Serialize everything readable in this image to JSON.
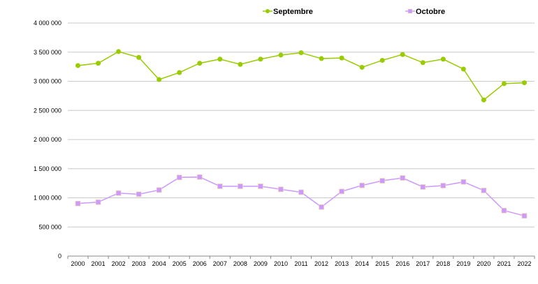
{
  "chart_data": {
    "type": "line",
    "title": "",
    "xlabel": "",
    "ylabel": "",
    "ylim": [
      0,
      4000000
    ],
    "yticks": [
      0,
      500000,
      1000000,
      1500000,
      2000000,
      2500000,
      3000000,
      3500000,
      4000000
    ],
    "ytick_labels": [
      "0",
      "500 000",
      "1 000 000",
      "1 500 000",
      "2 000 000",
      "2 500 000",
      "3 000 000",
      "3 500 000",
      "4 000 000"
    ],
    "grid": true,
    "legend_position": "top",
    "categories": [
      "2000",
      "2001",
      "2002",
      "2003",
      "2004",
      "2005",
      "2006",
      "2007",
      "2008",
      "2009",
      "2010",
      "2011",
      "2012",
      "2013",
      "2014",
      "2015",
      "2016",
      "2017",
      "2018",
      "2019",
      "2020",
      "2021",
      "2022"
    ],
    "series": [
      {
        "name": "Septembre",
        "color": "#99cc00",
        "marker": "circle",
        "values": [
          3270000,
          3310000,
          3510000,
          3410000,
          3030000,
          3150000,
          3310000,
          3380000,
          3290000,
          3380000,
          3450000,
          3490000,
          3390000,
          3400000,
          3240000,
          3360000,
          3460000,
          3320000,
          3380000,
          3210000,
          2680000,
          2960000,
          2975000
        ]
      },
      {
        "name": "Octobre",
        "color": "#cc99ff",
        "marker": "square",
        "values": [
          902000,
          926000,
          1081000,
          1062000,
          1134000,
          1350000,
          1357000,
          1198000,
          1198000,
          1198000,
          1146000,
          1096000,
          842000,
          1110000,
          1213000,
          1293000,
          1341000,
          1186000,
          1210000,
          1273000,
          1126000,
          782000,
          691000
        ]
      }
    ]
  }
}
